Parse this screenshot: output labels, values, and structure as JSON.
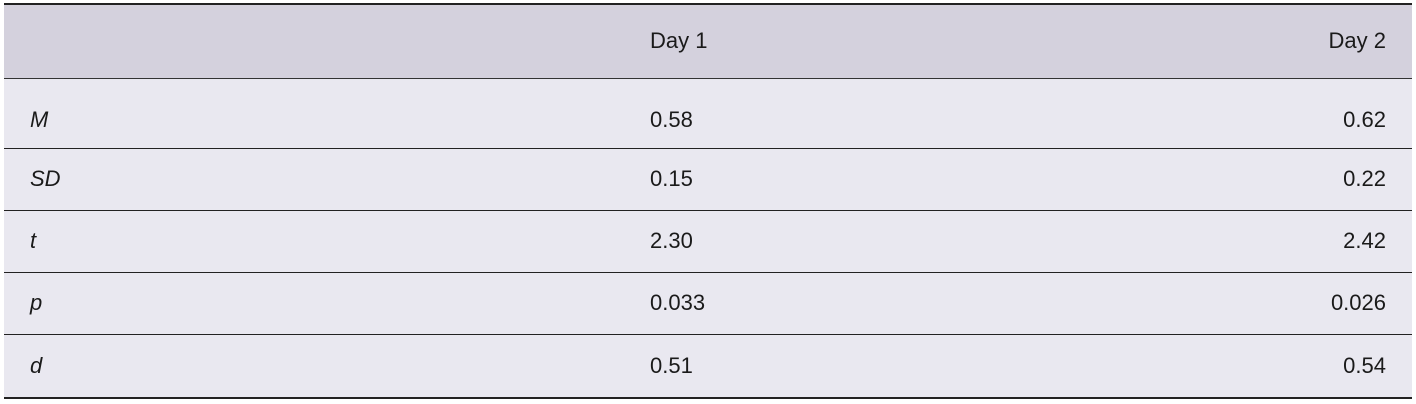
{
  "table": {
    "header": [
      "",
      "Day 1",
      "Day 2"
    ],
    "rows": [
      [
        "M",
        "0.58",
        "0.62"
      ],
      [
        "SD",
        "0.15",
        "0.22"
      ],
      [
        "t",
        "2.30",
        "2.42"
      ],
      [
        "p",
        "0.033",
        "0.026"
      ],
      [
        "d",
        "0.51",
        "0.54"
      ]
    ]
  }
}
